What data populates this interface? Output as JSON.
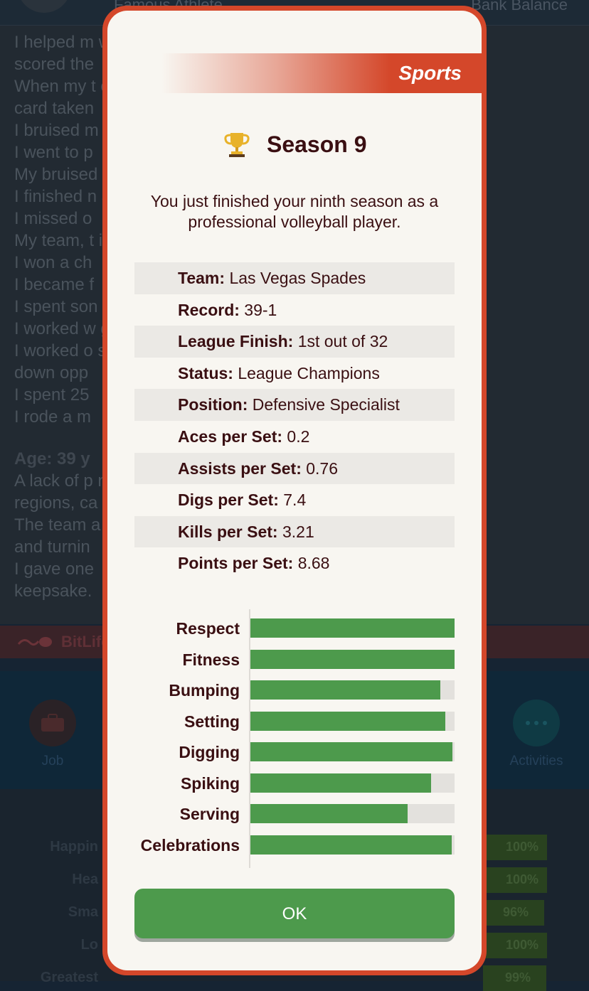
{
  "background": {
    "top_left_text": "Famous Athlete",
    "top_right_text": "Bank Balance",
    "log_lines": [
      "I helped m                                                  when I",
      "scored the",
      "When my t                                                each's V-",
      "card taken",
      "I bruised m                                             ers.",
      "I went to p",
      "My bruised",
      "I finished n                                            ayer.",
      "I missed o",
      "My team, t                                             ions!",
      "I won a ch",
      "I became f",
      "I spent son",
      "I worked w                                             g control.",
      "I worked o                                              stare",
      "down opp",
      "I spent 25",
      "I rode a m"
    ],
    "age_heading": "Age: 39 y",
    "log_lines_after": [
      "A lack of p                                             n several",
      "regions, ca",
      "The team a                                              he shower",
      "and turnin",
      "I gave one",
      "keepsake."
    ],
    "banner_text": "BitLife",
    "nav": {
      "job_label": "Job",
      "activities_label": "Activities"
    },
    "stats": [
      {
        "label": "Happin",
        "value": "100%",
        "level": 1.0
      },
      {
        "label": "Hea",
        "value": "100%",
        "level": 1.0
      },
      {
        "label": "Sma",
        "value": "96%",
        "level": 0.96
      },
      {
        "label": "Lo",
        "value": "100%",
        "level": 1.0
      },
      {
        "label": "Greatest",
        "value": "99%",
        "level": 0.99
      }
    ]
  },
  "modal": {
    "category": "Sports",
    "trophy_icon": "trophy-icon",
    "title": "Season 9",
    "description": "You just finished your ninth season as a professional volleyball player.",
    "info": [
      {
        "key": "Team:",
        "value": "Las Vegas Spades"
      },
      {
        "key": "Record:",
        "value": "39-1"
      },
      {
        "key": "League Finish:",
        "value": "1st out of 32"
      },
      {
        "key": "Status:",
        "value": "League Champions"
      },
      {
        "key": "Position:",
        "value": "Defensive Specialist"
      },
      {
        "key": "Aces per Set:",
        "value": "0.2"
      },
      {
        "key": "Assists per Set:",
        "value": "0.76"
      },
      {
        "key": "Digs per Set:",
        "value": "7.4"
      },
      {
        "key": "Kills per Set:",
        "value": "3.21"
      },
      {
        "key": "Points per Set:",
        "value": "8.68"
      }
    ],
    "skills": [
      {
        "label": "Respect",
        "level": 1.0
      },
      {
        "label": "Fitness",
        "level": 1.0
      },
      {
        "label": "Bumping",
        "level": 0.93
      },
      {
        "label": "Setting",
        "level": 0.955
      },
      {
        "label": "Digging",
        "level": 0.99
      },
      {
        "label": "Spiking",
        "level": 0.885
      },
      {
        "label": "Serving",
        "level": 0.77
      },
      {
        "label": "Celebrations",
        "level": 0.985
      }
    ],
    "ok_label": "OK"
  },
  "colors": {
    "accent_red": "#d4472a",
    "bar_green": "#4d9a4c",
    "text_dark": "#3a0f12"
  }
}
